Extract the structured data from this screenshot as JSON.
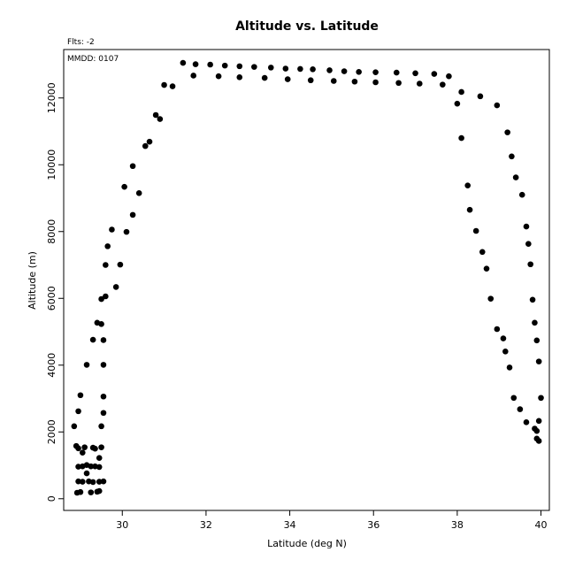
{
  "chart_data": {
    "type": "scatter",
    "title": "Altitude vs. Latitude",
    "subtitle": "Flts: -2",
    "annotation": "MMDD: 0107",
    "xlabel": "Latitude (deg N)",
    "ylabel": "Altitude (m)",
    "xlim": [
      28.6,
      40.2
    ],
    "ylim": [
      -350,
      13450
    ],
    "xticks": [
      30,
      32,
      34,
      36,
      38,
      40
    ],
    "yticks": [
      0,
      2000,
      4000,
      6000,
      8000,
      10000,
      12000
    ],
    "xtick_labels": [
      "30",
      "32",
      "34",
      "36",
      "38",
      "40"
    ],
    "ytick_labels": [
      "0",
      "2000",
      "4000",
      "6000",
      "8000",
      "10000",
      "12000"
    ],
    "grid": false,
    "marker_color": "#000000",
    "series": [
      {
        "points": [
          [
            28.92,
            180
          ],
          [
            29.0,
            200
          ],
          [
            29.25,
            190
          ],
          [
            29.4,
            210
          ],
          [
            29.45,
            230
          ],
          [
            28.95,
            520
          ],
          [
            29.05,
            510
          ],
          [
            29.2,
            520
          ],
          [
            29.3,
            500
          ],
          [
            29.45,
            510
          ],
          [
            29.55,
            520
          ],
          [
            29.15,
            760
          ],
          [
            28.95,
            960
          ],
          [
            29.05,
            970
          ],
          [
            29.15,
            1010
          ],
          [
            29.25,
            970
          ],
          [
            29.35,
            970
          ],
          [
            29.45,
            950
          ],
          [
            29.45,
            1220
          ],
          [
            29.05,
            1380
          ],
          [
            28.9,
            1580
          ],
          [
            28.95,
            1510
          ],
          [
            29.1,
            1540
          ],
          [
            29.3,
            1530
          ],
          [
            29.35,
            1500
          ],
          [
            29.5,
            1540
          ],
          [
            28.85,
            2170
          ],
          [
            29.5,
            2170
          ],
          [
            28.95,
            2620
          ],
          [
            29.55,
            2570
          ],
          [
            29.0,
            3100
          ],
          [
            29.55,
            3060
          ],
          [
            29.15,
            4010
          ],
          [
            29.55,
            4010
          ],
          [
            29.3,
            4760
          ],
          [
            29.55,
            4750
          ],
          [
            29.4,
            5270
          ],
          [
            29.5,
            5230
          ],
          [
            29.5,
            5980
          ],
          [
            29.6,
            6060
          ],
          [
            29.85,
            6340
          ],
          [
            29.6,
            7000
          ],
          [
            29.95,
            7010
          ],
          [
            29.65,
            7560
          ],
          [
            30.1,
            7990
          ],
          [
            29.75,
            8060
          ],
          [
            30.25,
            8500
          ],
          [
            30.4,
            9150
          ],
          [
            30.05,
            9340
          ],
          [
            30.25,
            9960
          ],
          [
            30.55,
            10560
          ],
          [
            30.65,
            10690
          ],
          [
            30.9,
            11370
          ],
          [
            30.8,
            11490
          ],
          [
            31.0,
            12390
          ],
          [
            31.2,
            12350
          ],
          [
            31.45,
            13050
          ],
          [
            31.75,
            13010
          ],
          [
            32.1,
            13000
          ],
          [
            32.45,
            12970
          ],
          [
            32.8,
            12950
          ],
          [
            33.15,
            12930
          ],
          [
            33.55,
            12910
          ],
          [
            33.9,
            12880
          ],
          [
            34.25,
            12870
          ],
          [
            34.55,
            12860
          ],
          [
            34.95,
            12830
          ],
          [
            35.3,
            12800
          ],
          [
            35.65,
            12780
          ],
          [
            36.05,
            12770
          ],
          [
            36.55,
            12760
          ],
          [
            37.0,
            12740
          ],
          [
            37.45,
            12720
          ],
          [
            37.8,
            12650
          ],
          [
            31.7,
            12670
          ],
          [
            32.3,
            12650
          ],
          [
            32.8,
            12620
          ],
          [
            33.4,
            12600
          ],
          [
            33.95,
            12560
          ],
          [
            34.5,
            12530
          ],
          [
            35.05,
            12510
          ],
          [
            35.55,
            12490
          ],
          [
            36.05,
            12470
          ],
          [
            36.6,
            12450
          ],
          [
            37.1,
            12430
          ],
          [
            37.65,
            12400
          ],
          [
            38.1,
            12180
          ],
          [
            38.0,
            11830
          ],
          [
            38.55,
            12050
          ],
          [
            38.95,
            11780
          ],
          [
            38.1,
            10800
          ],
          [
            39.2,
            10970
          ],
          [
            39.3,
            10250
          ],
          [
            38.25,
            9380
          ],
          [
            39.4,
            9620
          ],
          [
            39.55,
            9100
          ],
          [
            38.3,
            8650
          ],
          [
            38.45,
            8020
          ],
          [
            39.65,
            8150
          ],
          [
            38.6,
            7390
          ],
          [
            39.7,
            7630
          ],
          [
            38.7,
            6890
          ],
          [
            39.75,
            7020
          ],
          [
            38.8,
            5990
          ],
          [
            39.8,
            5960
          ],
          [
            38.95,
            5080
          ],
          [
            39.85,
            5270
          ],
          [
            39.1,
            4800
          ],
          [
            39.9,
            4740
          ],
          [
            39.15,
            4410
          ],
          [
            39.25,
            3930
          ],
          [
            39.95,
            4110
          ],
          [
            39.35,
            3020
          ],
          [
            40.0,
            3020
          ],
          [
            39.5,
            2680
          ],
          [
            39.65,
            2290
          ],
          [
            39.95,
            2330
          ],
          [
            39.85,
            2100
          ],
          [
            39.9,
            2030
          ],
          [
            39.9,
            1800
          ],
          [
            39.95,
            1730
          ]
        ]
      }
    ]
  }
}
